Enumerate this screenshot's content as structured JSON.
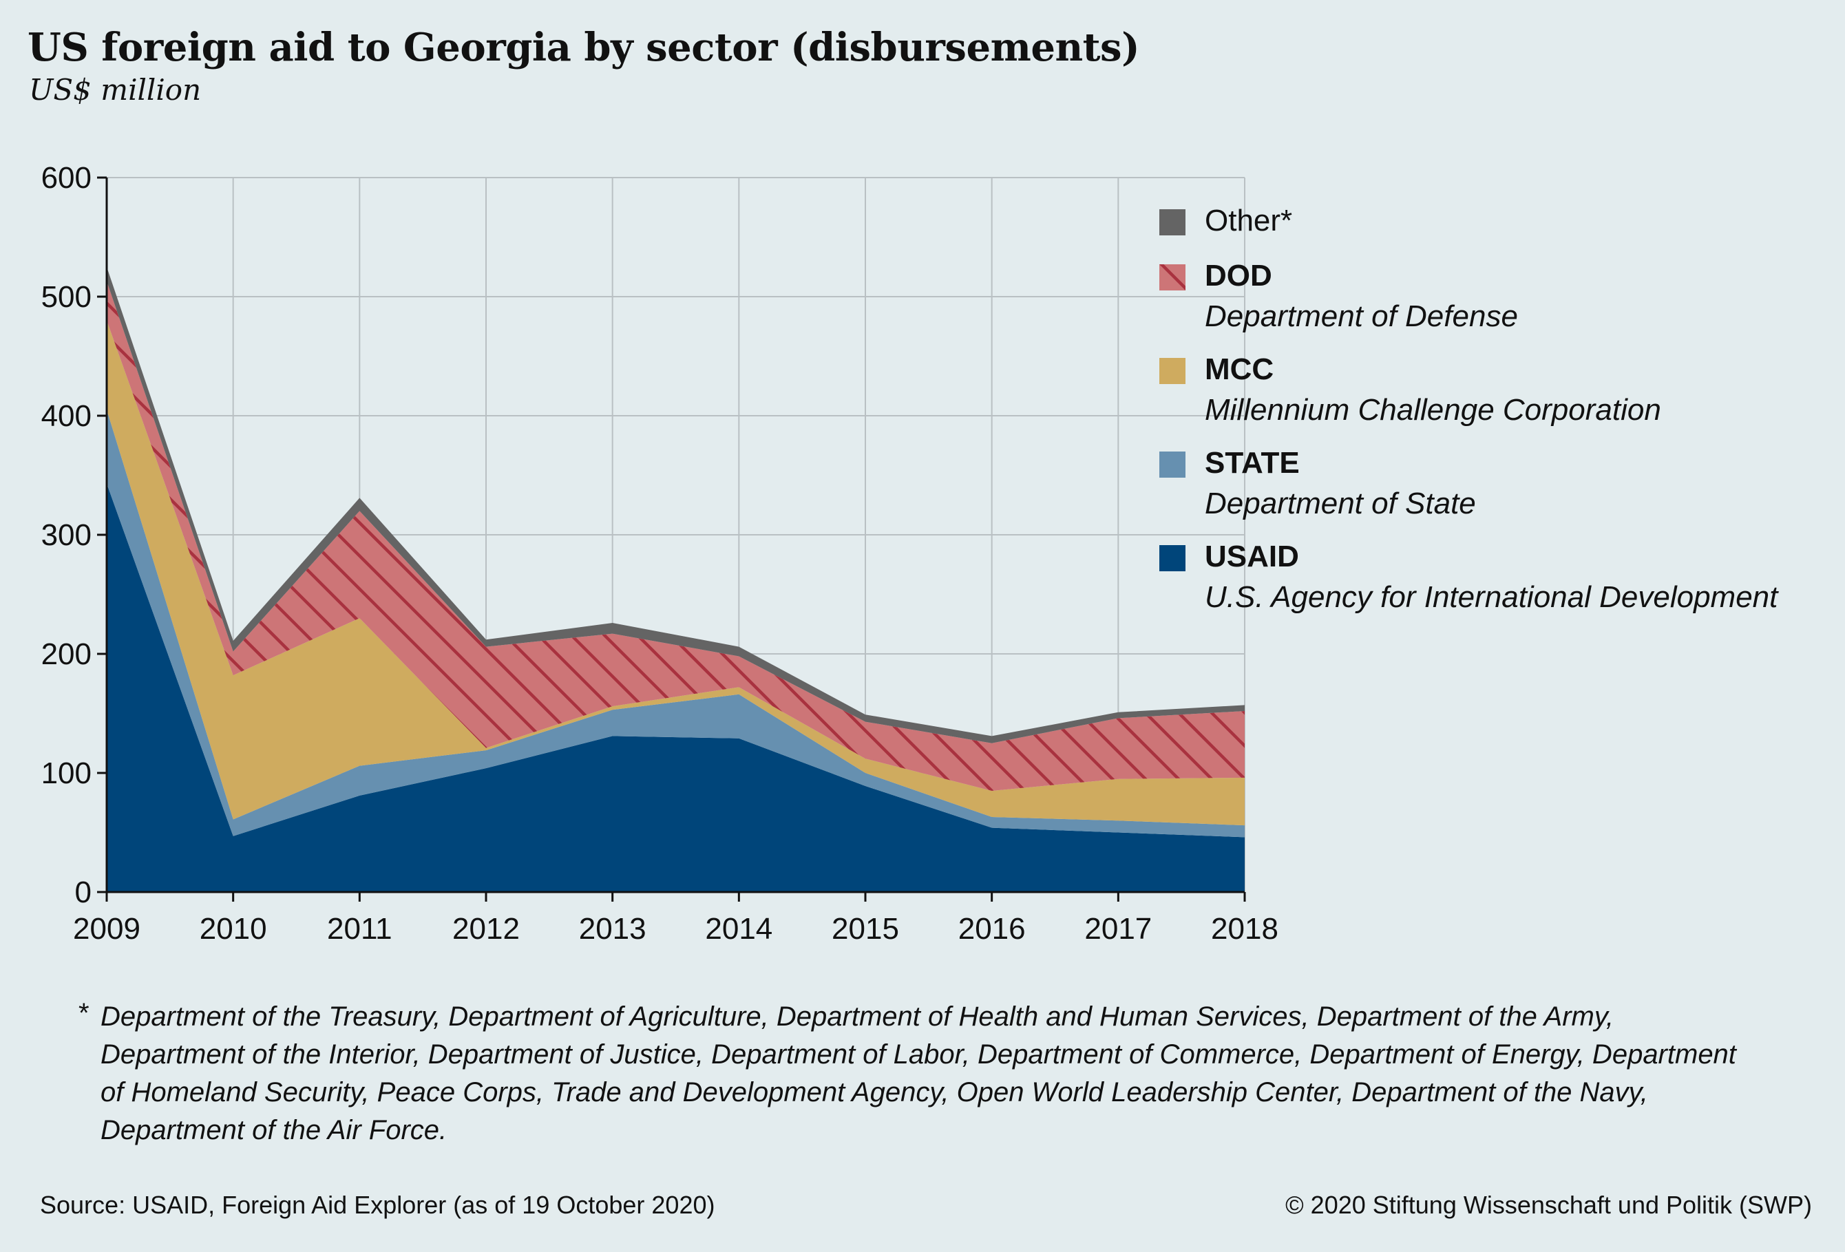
{
  "title": "US foreign aid to Georgia by sector (disbursements)",
  "subtitle": "US$ million",
  "legend": [
    {
      "key": "other",
      "name": "Other*",
      "desc": ""
    },
    {
      "key": "dod",
      "name": "DOD",
      "desc": "Department of Defense"
    },
    {
      "key": "mcc",
      "name": "MCC",
      "desc": "Millennium Challenge Corporation"
    },
    {
      "key": "state",
      "name": "STATE",
      "desc": "Department of State"
    },
    {
      "key": "usaid",
      "name": "USAID",
      "desc": "U.S. Agency for International Development"
    }
  ],
  "footnote_mark": "*",
  "footnote": "Department of the Treasury, Department of Agriculture, Department of Health and Human Services, Department of the Army, Department of the Interior, Department of Justice, Department of Labor, Department of Commerce, Department of Energy, Department of Homeland Security, Peace Corps, Trade and Development Agency, Open World Leadership Center, Department of the Navy, Department of the Air Force.",
  "source": "Source: USAID, Foreign Aid Explorer (as of 19 October 2020)",
  "copyright": "© 2020 Stiftung Wissenschaft und Politik (SWP)",
  "colors": {
    "background": "#e3ecee",
    "usaid": "#00457a",
    "state": "#6690b0",
    "mcc": "#cfab5f",
    "dod": "#cd7577",
    "dod_hatch": "#a9323f",
    "other": "#646464",
    "grid": "#b9c0c3"
  },
  "chart_data": {
    "type": "area",
    "stacked": true,
    "x": [
      "2009",
      "2010",
      "2011",
      "2012",
      "2013",
      "2014",
      "2015",
      "2016",
      "2017",
      "2018"
    ],
    "ylim": [
      0,
      600
    ],
    "yticks": [
      0,
      100,
      200,
      300,
      400,
      500,
      600
    ],
    "grid": true,
    "legend_position": "right",
    "series": [
      {
        "key": "usaid",
        "name": "USAID",
        "values": [
          343,
          47,
          81,
          104,
          131,
          129,
          89,
          54,
          50,
          46
        ]
      },
      {
        "key": "state",
        "name": "STATE",
        "values": [
          62,
          14,
          25,
          15,
          22,
          37,
          11,
          9,
          10,
          10
        ]
      },
      {
        "key": "mcc",
        "name": "MCC",
        "values": [
          75,
          121,
          124,
          2,
          3,
          6,
          12,
          22,
          35,
          40
        ]
      },
      {
        "key": "dod",
        "name": "DOD",
        "values": [
          33,
          20,
          90,
          85,
          61,
          26,
          31,
          40,
          51,
          56
        ]
      },
      {
        "key": "other",
        "name": "Other*",
        "values": [
          12,
          9,
          11,
          6,
          9,
          8,
          6,
          6,
          5,
          5
        ]
      }
    ]
  }
}
